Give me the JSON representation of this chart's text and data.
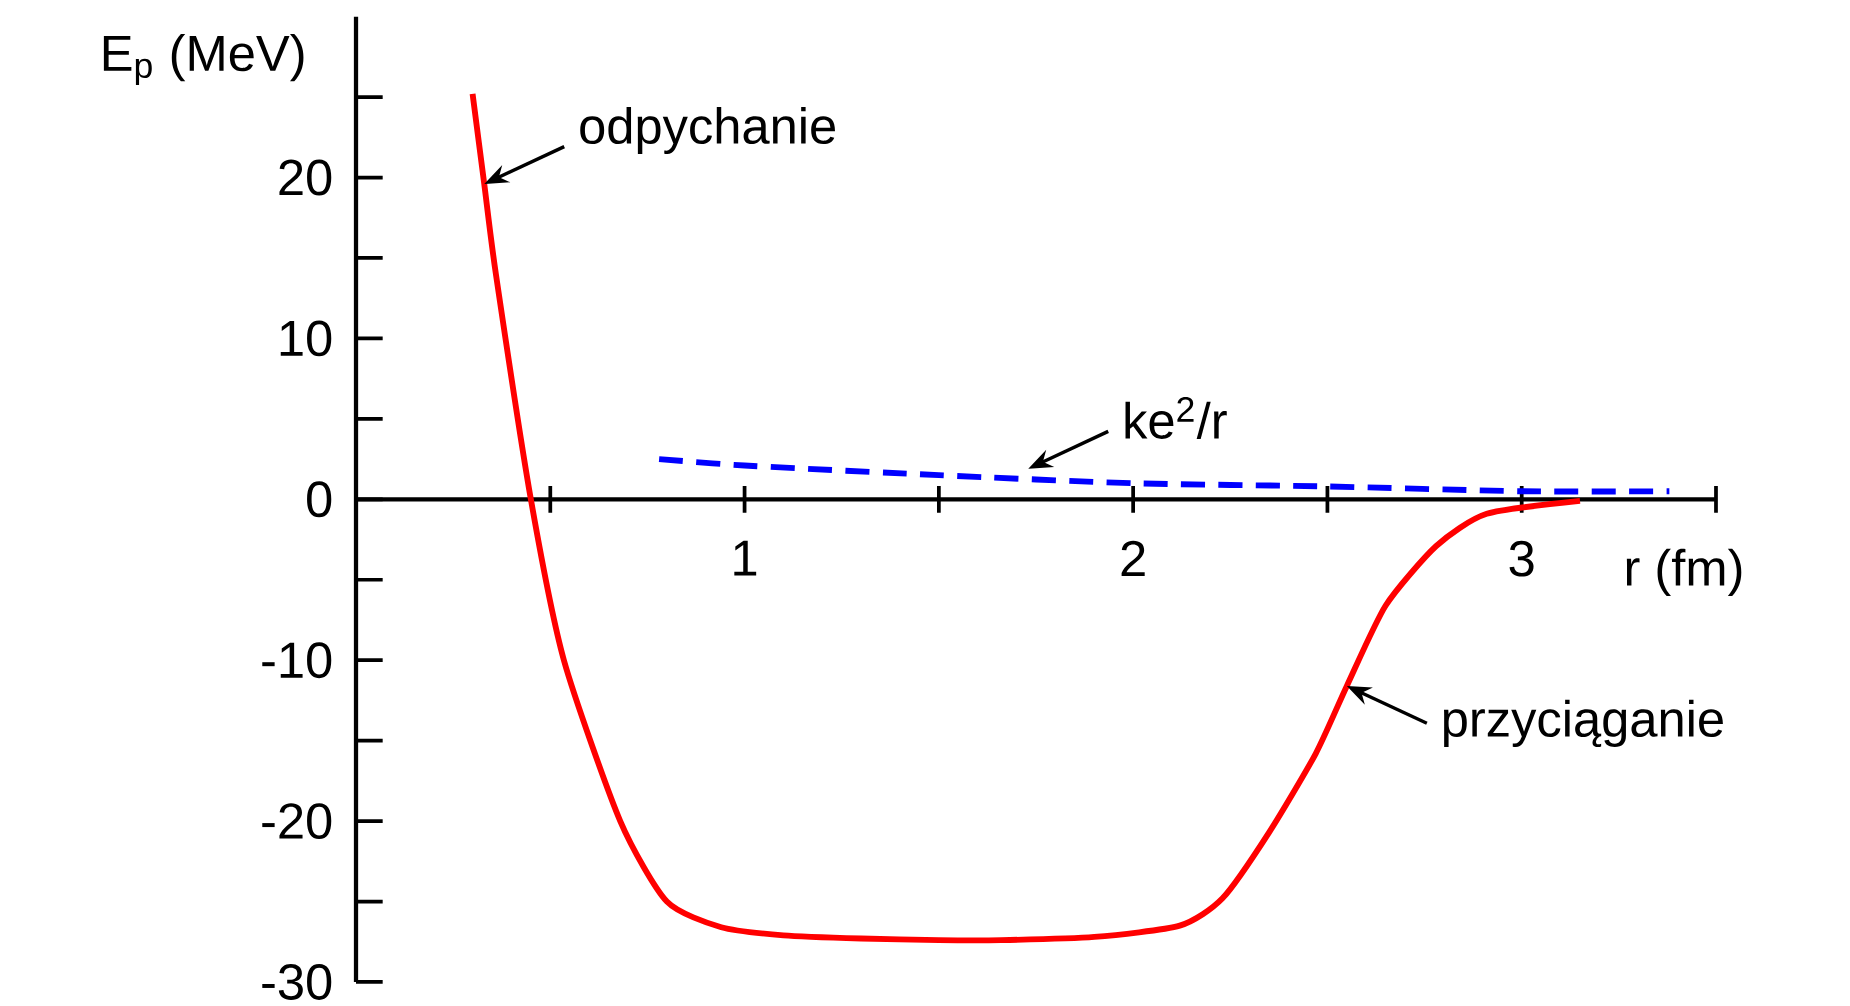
{
  "chart_data": {
    "type": "line",
    "xlabel": "r (fm)",
    "ylabel": "E$_{p}$ (MeV)",
    "xlim": [
      0,
      3.5
    ],
    "ylim": [
      -30,
      30
    ],
    "xticks": [
      {
        "value": 0.5,
        "label": null
      },
      1,
      {
        "value": 1.5,
        "label": null
      },
      2,
      {
        "value": 2.5,
        "label": null
      },
      3,
      {
        "value": 3.5,
        "label": null
      }
    ],
    "yticks": [
      -30,
      {
        "value": -25,
        "label": null
      },
      -20,
      {
        "value": -15,
        "label": null
      },
      -10,
      {
        "value": -5,
        "label": null
      },
      0,
      {
        "value": 5,
        "label": null
      },
      10,
      {
        "value": 15,
        "label": null
      },
      20,
      {
        "value": 25,
        "label": null
      }
    ],
    "grid": false,
    "marker": "none",
    "series": [
      {
        "color": "#ff0000",
        "line_style": "solid",
        "x": [
          0.3,
          0.33,
          0.36,
          0.45,
          0.535,
          0.68,
          0.8,
          0.94,
          1.1,
          1.3,
          1.5,
          1.66,
          1.9,
          2.12,
          2.23,
          2.35,
          2.47,
          2.55,
          2.65,
          2.78,
          2.91,
          3.15
        ],
        "values": [
          25.2,
          19.6,
          14,
          0,
          -10,
          -20,
          -25,
          -26.6,
          -27.1,
          -27.3,
          -27.4,
          -27.4,
          -27.2,
          -26.5,
          -24.8,
          -20.7,
          -15.8,
          -11.6,
          -6.6,
          -2.9,
          -0.9,
          -0.1
        ]
      },
      {
        "color": "#0000ff",
        "line_style": "dashed",
        "x": [
          0.78,
          1,
          1.5,
          2,
          2.5,
          3,
          3.38
        ],
        "values": [
          2.5,
          2.1,
          1.5,
          1.0,
          0.8,
          0.5,
          0.5
        ]
      }
    ],
    "annotations": [
      {
        "text": "odpychanie",
        "x": 0.33,
        "y": 19.6
      },
      {
        "text": "ke$^{2}$/r",
        "x": 1.73,
        "y": 1.9
      },
      {
        "text": "przyciąganie",
        "x": 2.55,
        "y": -11.6
      }
    ]
  }
}
